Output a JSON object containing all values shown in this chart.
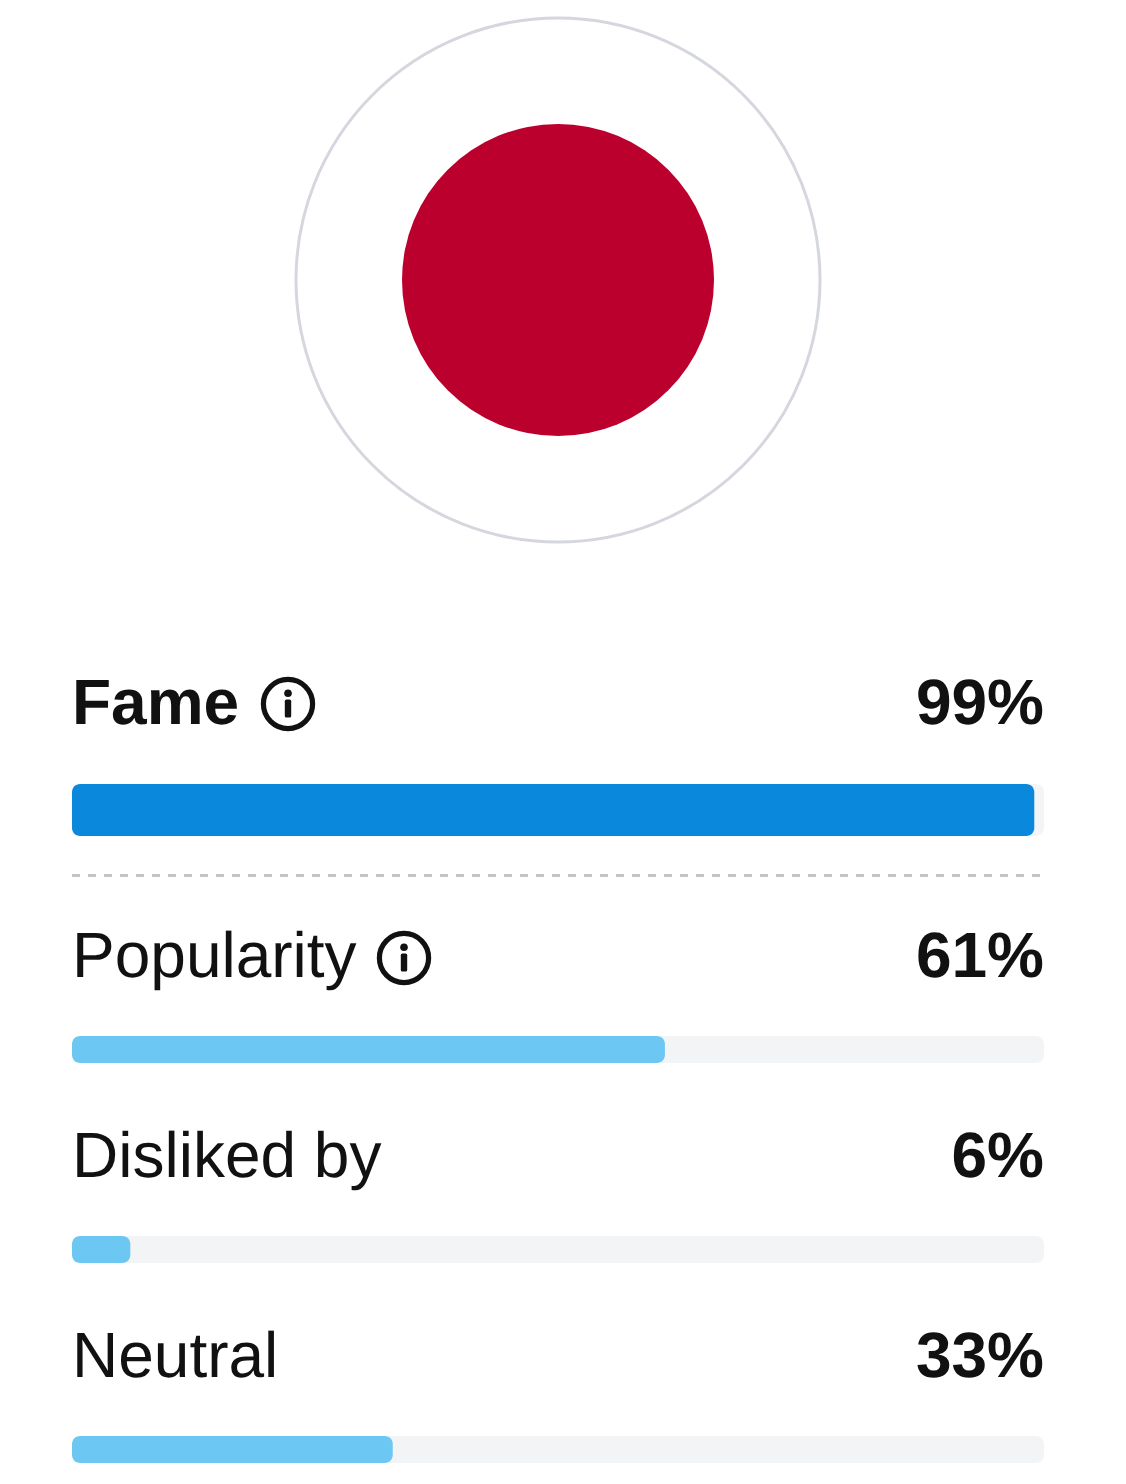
{
  "chart_data": {
    "type": "bar",
    "orientation": "horizontal",
    "categories": [
      "Fame",
      "Popularity",
      "Disliked by",
      "Neutral"
    ],
    "values": [
      99,
      61,
      6,
      33
    ],
    "colors": [
      "#0a88dc",
      "#6cc8f2",
      "#6cc8f2",
      "#6cc8f2"
    ],
    "xlim": [
      0,
      100
    ],
    "value_labels": [
      "99%",
      "61%",
      "6%",
      "33%"
    ]
  }
}
